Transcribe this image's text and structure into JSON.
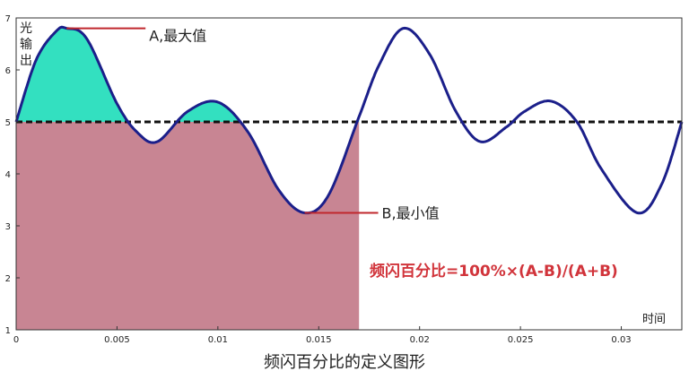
{
  "chart_data": {
    "type": "line",
    "title": "",
    "xlabel": "时间",
    "ylabel": "光输出",
    "xlim": [
      0,
      0.033
    ],
    "ylim": [
      1,
      7
    ],
    "xticks": [
      "0",
      "0.005",
      "0.01",
      "0.015",
      "0.02",
      "0.025",
      "0.03"
    ],
    "yticks": [
      "1",
      "2",
      "3",
      "4",
      "5",
      "6",
      "7"
    ],
    "average_line": 5,
    "series": [
      {
        "values": {
          "x": [
            0,
            0.001,
            0.002,
            0.0025,
            0.0035,
            0.005,
            0.006,
            0.007,
            0.0085,
            0.01,
            0.0115,
            0.013,
            0.0143,
            0.0155,
            0.017,
            0.018,
            0.0192,
            0.0205,
            0.0218,
            0.023,
            0.0243,
            0.0252,
            0.0265,
            0.0278,
            0.029,
            0.0308,
            0.032,
            0.033
          ],
          "y": [
            5.0,
            6.2,
            6.75,
            6.8,
            6.6,
            5.35,
            4.8,
            4.62,
            5.2,
            5.38,
            4.8,
            3.7,
            3.25,
            3.6,
            5.1,
            6.1,
            6.8,
            6.3,
            5.2,
            4.62,
            4.9,
            5.2,
            5.4,
            5.0,
            4.1,
            3.25,
            3.8,
            5.0
          ]
        }
      }
    ],
    "shaded_time_end": 0.017,
    "annotations": [
      {
        "label": "A,最大值",
        "x": 0.0025,
        "y": 6.8
      },
      {
        "label": "B,最小值",
        "x": 0.0143,
        "y": 3.25
      }
    ],
    "formula": "频闪百分比=100%×(A-B)/(A+B)"
  },
  "caption": "频闪百分比的定义图形",
  "colors": {
    "curve": "#1b1f8a",
    "above_fill": "#33e0c0",
    "below_fill": "#c88593",
    "average_line": "#111111",
    "annotation_leader": "#c0282d",
    "formula": "#d1343b"
  }
}
